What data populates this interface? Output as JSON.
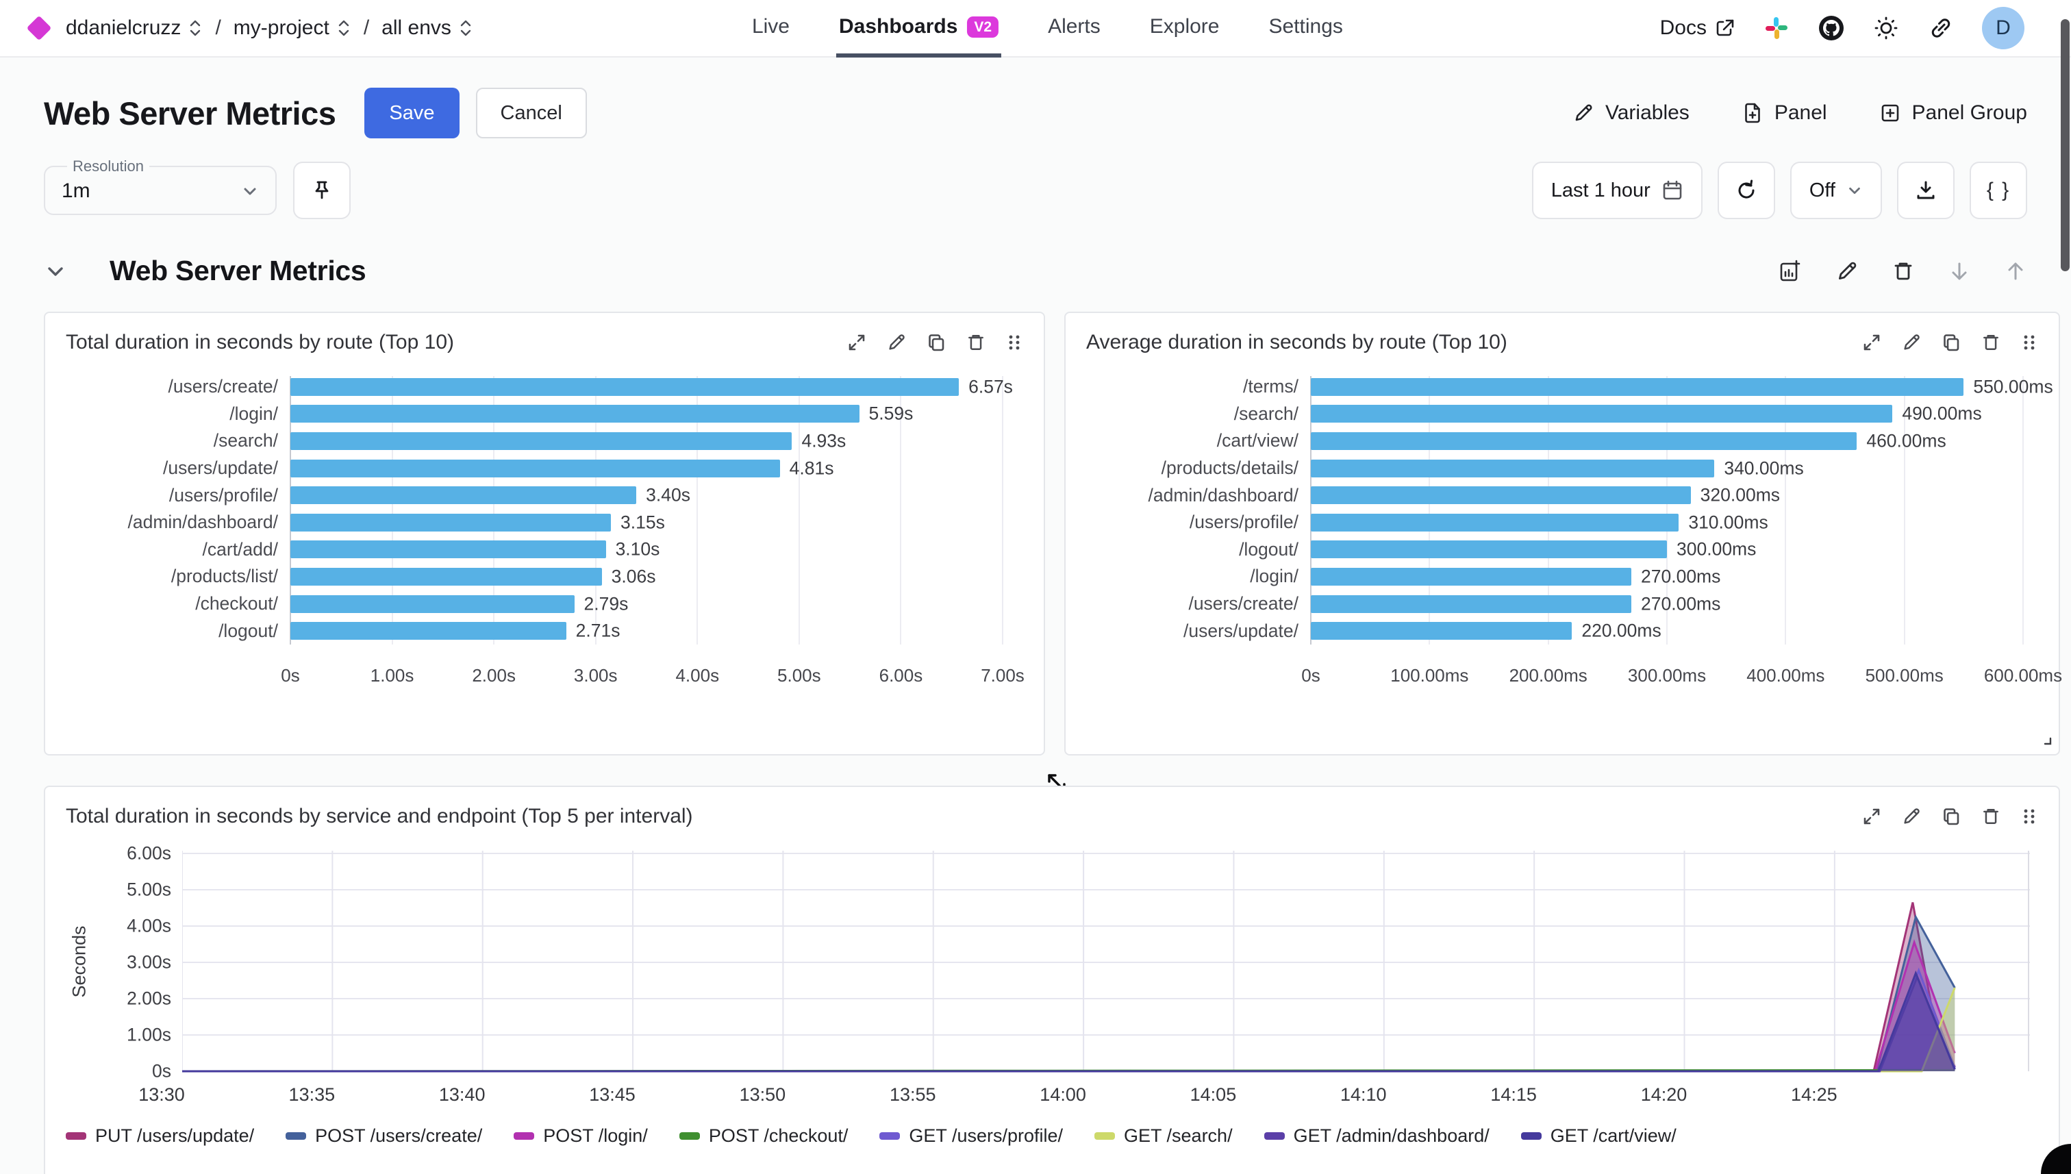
{
  "nav": {
    "breadcrumb": [
      {
        "label": "ddanielcruzz"
      },
      {
        "label": "my-project"
      },
      {
        "label": "all envs"
      }
    ],
    "separator": "/",
    "tabs": [
      {
        "label": "Live",
        "active": false
      },
      {
        "label": "Dashboards",
        "badge": "V2",
        "active": true
      },
      {
        "label": "Alerts",
        "active": false
      },
      {
        "label": "Explore",
        "active": false
      },
      {
        "label": "Settings",
        "active": false
      }
    ],
    "docs_label": "Docs",
    "avatar_initial": "D",
    "icons": [
      "external-link-icon",
      "slack-icon",
      "github-icon",
      "sun-icon",
      "link-icon"
    ]
  },
  "header": {
    "title": "Web Server Metrics",
    "save_label": "Save",
    "cancel_label": "Cancel",
    "variables_label": "Variables",
    "panel_label": "Panel",
    "panel_group_label": "Panel Group"
  },
  "toolbar": {
    "resolution_label": "Resolution",
    "resolution_value": "1m",
    "time_range_label": "Last 1 hour",
    "refresh_interval_value": "Off",
    "braces_label": "{ }",
    "icons": [
      "pin-icon",
      "calendar-icon",
      "refresh-icon",
      "download-icon"
    ]
  },
  "section": {
    "title": "Web Server Metrics"
  },
  "panel_action_icons": [
    "expand-icon",
    "edit-icon",
    "copy-icon",
    "trash-icon",
    "drag-handle-icon"
  ],
  "section_action_icons": [
    "chart-add-icon",
    "edit-icon",
    "trash-icon",
    "arrow-down-icon",
    "arrow-up-icon"
  ],
  "colors": {
    "accent_blue": "#3e6ae1",
    "bar_blue": "#57b1e5",
    "badge_magenta": "#dc39dc",
    "active_tab_underline": "#475063"
  },
  "chart_data": [
    {
      "type": "bar",
      "orientation": "horizontal",
      "title": "Total duration in seconds by route (Top 10)",
      "categories": [
        "/users/create/",
        "/login/",
        "/search/",
        "/users/update/",
        "/users/profile/",
        "/admin/dashboard/",
        "/cart/add/",
        "/products/list/",
        "/checkout/",
        "/logout/"
      ],
      "values": [
        6.57,
        5.59,
        4.93,
        4.81,
        3.4,
        3.15,
        3.1,
        3.06,
        2.79,
        2.71
      ],
      "value_labels": [
        "6.57s",
        "5.59s",
        "4.93s",
        "4.81s",
        "3.40s",
        "3.15s",
        "3.10s",
        "3.06s",
        "2.79s",
        "2.71s"
      ],
      "xticks": [
        "0s",
        "1.00s",
        "2.00s",
        "3.00s",
        "4.00s",
        "5.00s",
        "6.00s",
        "7.00s"
      ],
      "xlim": [
        0,
        7
      ],
      "bar_color": "#57b1e5",
      "grid": true
    },
    {
      "type": "bar",
      "orientation": "horizontal",
      "title": "Average duration in seconds by route (Top 10)",
      "categories": [
        "/terms/",
        "/search/",
        "/cart/view/",
        "/products/details/",
        "/admin/dashboard/",
        "/users/profile/",
        "/logout/",
        "/login/",
        "/users/create/",
        "/users/update/"
      ],
      "values": [
        550,
        490,
        460,
        340,
        320,
        310,
        300,
        270,
        270,
        220
      ],
      "value_labels": [
        "550.00ms",
        "490.00ms",
        "460.00ms",
        "340.00ms",
        "320.00ms",
        "310.00ms",
        "300.00ms",
        "270.00ms",
        "270.00ms",
        "220.00ms"
      ],
      "xticks": [
        "0s",
        "100.00ms",
        "200.00ms",
        "300.00ms",
        "400.00ms",
        "500.00ms",
        "600.00ms"
      ],
      "xlim": [
        0,
        600
      ],
      "bar_color": "#57b1e5",
      "grid": true
    },
    {
      "type": "area",
      "title": "Total duration in seconds by service and endpoint (Top 5 per interval)",
      "ylabel": "Seconds",
      "yticks": [
        "0s",
        "1.00s",
        "2.00s",
        "3.00s",
        "4.00s",
        "5.00s",
        "6.00s"
      ],
      "ylim": [
        0,
        6
      ],
      "xticks": [
        "13:30",
        "13:35",
        "13:40",
        "13:45",
        "13:50",
        "13:55",
        "14:00",
        "14:05",
        "14:10",
        "14:15",
        "14:20",
        "14:25"
      ],
      "x_tick_minutes": [
        0,
        5,
        10,
        15,
        20,
        25,
        30,
        35,
        40,
        45,
        50,
        55
      ],
      "x_domain_minutes": [
        0,
        61.5
      ],
      "grid": true,
      "legend_position": "bottom",
      "series": [
        {
          "name": "PUT /users/update/",
          "color": "#a33477",
          "points": [
            [
              0,
              0
            ],
            [
              56.3,
              0
            ],
            [
              57.6,
              4.65
            ],
            [
              58.2,
              1.9
            ],
            [
              59,
              0.12
            ]
          ]
        },
        {
          "name": "POST /users/create/",
          "color": "#44619b",
          "points": [
            [
              0,
              0
            ],
            [
              56.4,
              0
            ],
            [
              57.7,
              4.25
            ],
            [
              59,
              2.3
            ]
          ]
        },
        {
          "name": "POST /login/",
          "color": "#b231b0",
          "points": [
            [
              0,
              0
            ],
            [
              56.35,
              0
            ],
            [
              57.65,
              3.55
            ],
            [
              59,
              0.5
            ]
          ]
        },
        {
          "name": "POST /checkout/",
          "color": "#3f8f30",
          "points": [
            [
              0,
              0
            ],
            [
              59,
              0.03
            ]
          ]
        },
        {
          "name": "GET /users/profile/",
          "color": "#6f5ad1",
          "points": [
            [
              0,
              0
            ],
            [
              56.5,
              0
            ],
            [
              57.8,
              2.78
            ],
            [
              59,
              0.1
            ]
          ]
        },
        {
          "name": "GET /search/",
          "color": "#cdd96a",
          "points": [
            [
              0,
              0
            ],
            [
              57.9,
              0
            ],
            [
              59,
              2.3
            ]
          ]
        },
        {
          "name": "GET /admin/dashboard/",
          "color": "#5b3fa8",
          "points": [
            [
              0,
              0
            ],
            [
              56.5,
              0
            ],
            [
              57.75,
              2.6
            ],
            [
              59,
              0.06
            ]
          ]
        },
        {
          "name": "GET /cart/view/",
          "color": "#453a9d",
          "points": [
            [
              0,
              0
            ],
            [
              56.45,
              0
            ],
            [
              57.7,
              2.7
            ],
            [
              59,
              0.05
            ]
          ]
        }
      ]
    }
  ]
}
